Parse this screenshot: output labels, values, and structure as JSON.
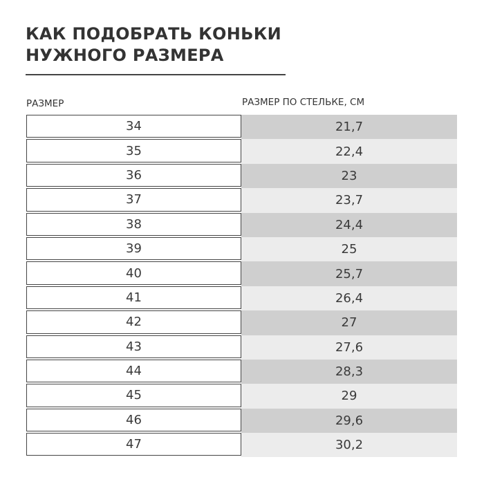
{
  "title": {
    "line1": "КАК ПОДОБРАТЬ КОНЬКИ",
    "line2": "НУЖНОГО РАЗМЕРА"
  },
  "columns": {
    "size": "РАЗМЕР",
    "insole": "РАЗМЕР ПО СТЕЛЬКЕ, СМ"
  },
  "colors": {
    "row_dark": "#cfcfcf",
    "row_light": "#ececec",
    "border": "#444444",
    "text": "#3a3a3a"
  },
  "rows": [
    {
      "size": "34",
      "insole": "21,7"
    },
    {
      "size": "35",
      "insole": "22,4"
    },
    {
      "size": "36",
      "insole": "23"
    },
    {
      "size": "37",
      "insole": "23,7"
    },
    {
      "size": "38",
      "insole": "24,4"
    },
    {
      "size": "39",
      "insole": "25"
    },
    {
      "size": "40",
      "insole": "25,7"
    },
    {
      "size": "41",
      "insole": "26,4"
    },
    {
      "size": "42",
      "insole": "27"
    },
    {
      "size": "43",
      "insole": "27,6"
    },
    {
      "size": "44",
      "insole": "28,3"
    },
    {
      "size": "45",
      "insole": "29"
    },
    {
      "size": "46",
      "insole": "29,6"
    },
    {
      "size": "47",
      "insole": "30,2"
    }
  ]
}
